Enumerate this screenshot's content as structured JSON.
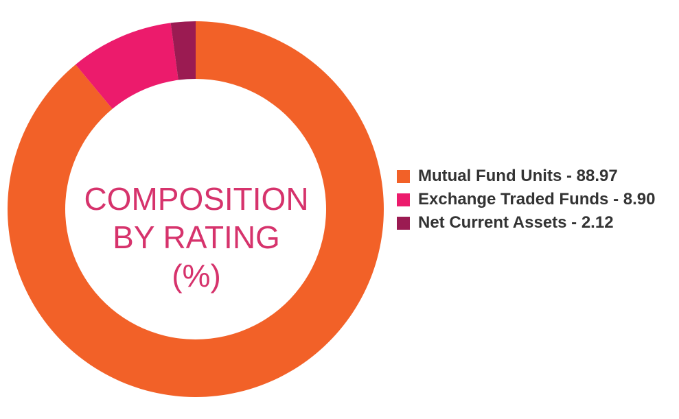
{
  "chart_data": {
    "type": "pie",
    "donut": true,
    "title_lines": [
      "COMPOSITION",
      "BY RATING",
      "(%)"
    ],
    "categories": [
      "Mutual Fund Units",
      "Exchange Traded Funds",
      "Net Current Assets"
    ],
    "values": [
      88.97,
      8.9,
      2.12
    ],
    "legend_labels": [
      "Mutual Fund Units - 88.97",
      "Exchange Traded Funds - 8.90",
      "Net Current Assets - 2.12"
    ],
    "colors": [
      "#f26128",
      "#ec1b6c",
      "#9b1b52"
    ],
    "legend_position": "right",
    "start_angle": "top",
    "direction": "clockwise"
  }
}
